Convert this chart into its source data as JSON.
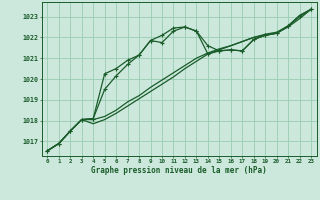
{
  "x": [
    0,
    1,
    2,
    3,
    4,
    5,
    6,
    7,
    8,
    9,
    10,
    11,
    12,
    13,
    14,
    15,
    16,
    17,
    18,
    19,
    20,
    21,
    22,
    23
  ],
  "line_wavy1": [
    1016.55,
    1016.9,
    1017.5,
    1018.05,
    1018.1,
    1020.25,
    1020.5,
    1020.9,
    1021.15,
    1021.85,
    1021.75,
    1022.3,
    1022.5,
    1022.3,
    1021.2,
    1021.35,
    1021.4,
    1021.35,
    1021.9,
    1022.1,
    1022.2,
    1022.55,
    1023.05,
    1023.35
  ],
  "line_wavy2": [
    1016.55,
    1016.9,
    1017.5,
    1018.05,
    1018.1,
    1019.5,
    1020.15,
    1020.7,
    1021.15,
    1021.85,
    1022.1,
    1022.45,
    1022.5,
    1022.3,
    1021.6,
    1021.35,
    1021.4,
    1021.35,
    1021.9,
    1022.1,
    1022.2,
    1022.55,
    1023.05,
    1023.35
  ],
  "line_straight1": [
    1016.55,
    1016.9,
    1017.5,
    1018.05,
    1018.05,
    1018.2,
    1018.5,
    1018.9,
    1019.2,
    1019.6,
    1019.95,
    1020.3,
    1020.65,
    1021.0,
    1021.25,
    1021.45,
    1021.6,
    1021.8,
    1022.0,
    1022.15,
    1022.25,
    1022.55,
    1023.0,
    1023.35
  ],
  "line_straight2": [
    1016.55,
    1016.9,
    1017.5,
    1018.05,
    1017.85,
    1018.05,
    1018.35,
    1018.7,
    1019.05,
    1019.4,
    1019.75,
    1020.1,
    1020.5,
    1020.85,
    1021.2,
    1021.4,
    1021.6,
    1021.8,
    1022.0,
    1022.1,
    1022.2,
    1022.5,
    1022.9,
    1023.35
  ],
  "bg_color": "#cce8dc",
  "grid_color": "#99ccb3",
  "line_color": "#1a5c2a",
  "xlabel": "Graphe pression niveau de la mer (hPa)",
  "ylim_min": 1016.3,
  "ylim_max": 1023.7,
  "yticks": [
    1017,
    1018,
    1019,
    1020,
    1021,
    1022,
    1023
  ],
  "xticks": [
    0,
    1,
    2,
    3,
    4,
    5,
    6,
    7,
    8,
    9,
    10,
    11,
    12,
    13,
    14,
    15,
    16,
    17,
    18,
    19,
    20,
    21,
    22,
    23
  ]
}
